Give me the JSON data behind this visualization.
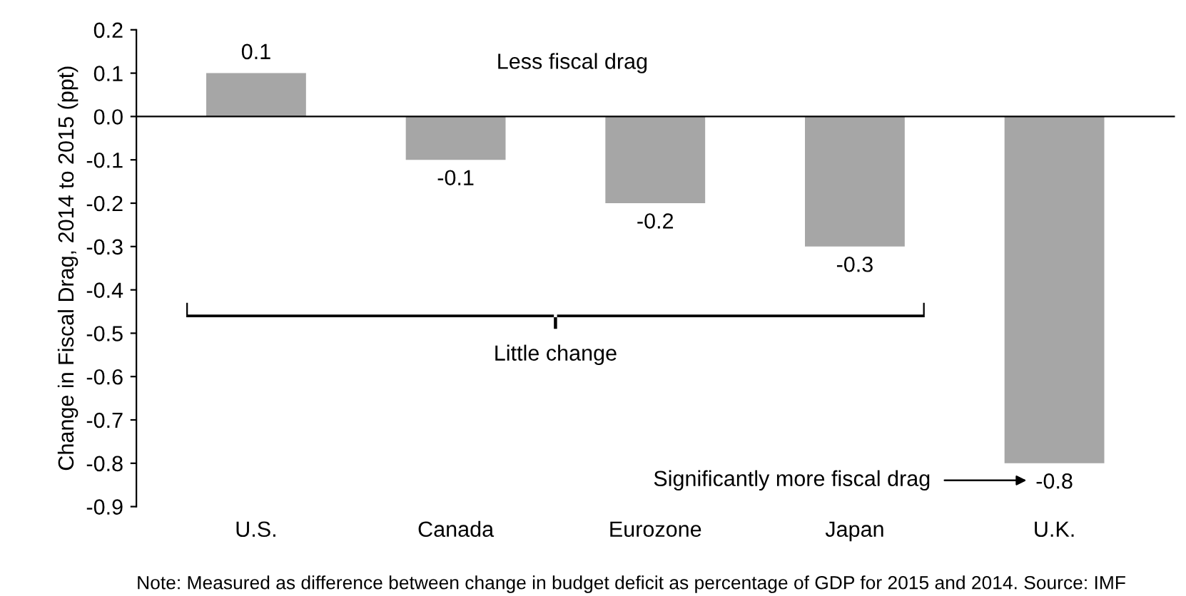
{
  "chart_data": {
    "type": "bar",
    "categories": [
      "U.S.",
      "Canada",
      "Eurozone",
      "Japan",
      "U.K."
    ],
    "values": [
      0.1,
      -0.1,
      -0.2,
      -0.3,
      -0.8
    ],
    "color": "#a6a6a6",
    "ylabel": "Change in Fiscal Drag, 2014 to 2015 (ppt)",
    "ylim": [
      -0.9,
      0.2
    ],
    "yticks": [
      {
        "value": -0.9,
        "label": "-0.9"
      },
      {
        "value": -0.8,
        "label": "-0.8"
      },
      {
        "value": -0.7,
        "label": "-0.7"
      },
      {
        "value": -0.6,
        "label": "-0.6"
      },
      {
        "value": -0.5,
        "label": "-0.5"
      },
      {
        "value": -0.4,
        "label": "-0.4"
      },
      {
        "value": -0.3,
        "label": "-0.3"
      },
      {
        "value": -0.2,
        "label": "-0.2"
      },
      {
        "value": -0.1,
        "label": "-0.1"
      },
      {
        "value": 0,
        "label": "0.0"
      },
      {
        "value": 0.1,
        "label": "0.1"
      },
      {
        "value": 0.2,
        "label": "0.2"
      }
    ],
    "data_labels": true,
    "annotations": [
      "Less fiscal drag",
      "Little change",
      "Significantly more fiscal drag",
      "Note: Measured as difference between change in budget deficit as percentage of GDP for 2015 and 2014. Source: IMF"
    ]
  }
}
